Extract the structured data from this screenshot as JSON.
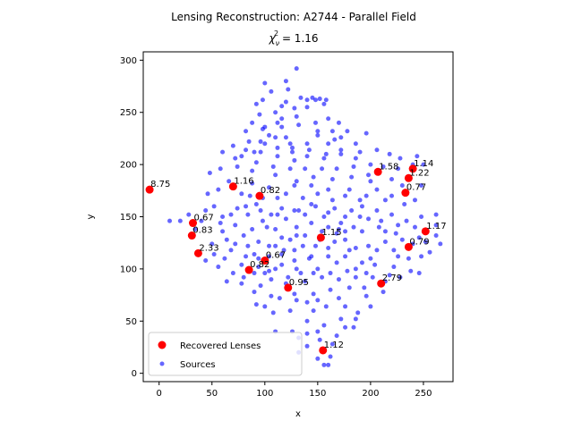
{
  "chart_data": {
    "type": "scatter",
    "title": "Lensing Reconstruction: A2744 - Parallel Field",
    "subtitle_lhs": "χ",
    "subtitle_sub": "ν",
    "subtitle_sup": "2",
    "subtitle_rhs": " = 1.16",
    "xlabel": "x",
    "ylabel": "y",
    "xlim": [
      -15,
      278
    ],
    "ylim": [
      -8,
      308
    ],
    "xticks": [
      0,
      50,
      100,
      150,
      200,
      250
    ],
    "yticks": [
      0,
      50,
      100,
      150,
      200,
      250,
      300
    ],
    "legend": {
      "position": "lower-left",
      "entries": [
        "Recovered Lenses",
        "Sources"
      ]
    },
    "colors": {
      "lenses": "#ff0000",
      "sources": "#0000ff"
    },
    "lenses": [
      {
        "x": -9,
        "y": 176,
        "label": "8.75"
      },
      {
        "x": 70,
        "y": 179,
        "label": "1.16"
      },
      {
        "x": 95,
        "y": 170,
        "label": "0.82"
      },
      {
        "x": 32,
        "y": 144,
        "label": "0.67"
      },
      {
        "x": 31,
        "y": 132,
        "label": "0.83"
      },
      {
        "x": 37,
        "y": 115,
        "label": "2.33"
      },
      {
        "x": 100,
        "y": 108,
        "label": "0.67"
      },
      {
        "x": 85,
        "y": 99,
        "label": "0.82"
      },
      {
        "x": 122,
        "y": 82,
        "label": "0.95"
      },
      {
        "x": 153,
        "y": 130,
        "label": "1.15"
      },
      {
        "x": 155,
        "y": 22,
        "label": "1.12"
      },
      {
        "x": 207,
        "y": 193,
        "label": "1.58"
      },
      {
        "x": 240,
        "y": 196,
        "label": "1.14"
      },
      {
        "x": 236,
        "y": 187,
        "label": "1.22"
      },
      {
        "x": 233,
        "y": 173,
        "label": "0.77"
      },
      {
        "x": 252,
        "y": 136,
        "label": "1.17"
      },
      {
        "x": 236,
        "y": 121,
        "label": "0.79"
      },
      {
        "x": 210,
        "y": 86,
        "label": "2.79"
      }
    ],
    "sources": [
      [
        130,
        292
      ],
      [
        122,
        272
      ],
      [
        100,
        278
      ],
      [
        98,
        262
      ],
      [
        120,
        260
      ],
      [
        145,
        264
      ],
      [
        148,
        262
      ],
      [
        152,
        263
      ],
      [
        156,
        258
      ],
      [
        140,
        255
      ],
      [
        128,
        254
      ],
      [
        110,
        250
      ],
      [
        95,
        248
      ],
      [
        88,
        240
      ],
      [
        112,
        240
      ],
      [
        132,
        238
      ],
      [
        160,
        244
      ],
      [
        170,
        240
      ],
      [
        178,
        232
      ],
      [
        150,
        228
      ],
      [
        120,
        226
      ],
      [
        104,
        228
      ],
      [
        85,
        222
      ],
      [
        70,
        218
      ],
      [
        60,
        212
      ],
      [
        78,
        208
      ],
      [
        96,
        212
      ],
      [
        112,
        208
      ],
      [
        128,
        204
      ],
      [
        140,
        208
      ],
      [
        156,
        206
      ],
      [
        172,
        210
      ],
      [
        190,
        212
      ],
      [
        206,
        214
      ],
      [
        218,
        210
      ],
      [
        228,
        206
      ],
      [
        244,
        208
      ],
      [
        250,
        200
      ],
      [
        236,
        188
      ],
      [
        220,
        186
      ],
      [
        198,
        190
      ],
      [
        182,
        188
      ],
      [
        164,
        186
      ],
      [
        146,
        188
      ],
      [
        130,
        184
      ],
      [
        110,
        190
      ],
      [
        88,
        194
      ],
      [
        74,
        198
      ],
      [
        58,
        196
      ],
      [
        48,
        192
      ],
      [
        46,
        172
      ],
      [
        52,
        160
      ],
      [
        60,
        150
      ],
      [
        74,
        158
      ],
      [
        92,
        162
      ],
      [
        106,
        152
      ],
      [
        120,
        148
      ],
      [
        138,
        152
      ],
      [
        156,
        150
      ],
      [
        172,
        144
      ],
      [
        190,
        150
      ],
      [
        206,
        156
      ],
      [
        220,
        152
      ],
      [
        234,
        146
      ],
      [
        248,
        150
      ],
      [
        262,
        152
      ],
      [
        262,
        142
      ],
      [
        246,
        130
      ],
      [
        230,
        128
      ],
      [
        214,
        126
      ],
      [
        198,
        122
      ],
      [
        180,
        118
      ],
      [
        166,
        126
      ],
      [
        148,
        122
      ],
      [
        128,
        118
      ],
      [
        110,
        122
      ],
      [
        94,
        126
      ],
      [
        80,
        132
      ],
      [
        64,
        128
      ],
      [
        50,
        124
      ],
      [
        44,
        108
      ],
      [
        56,
        102
      ],
      [
        70,
        96
      ],
      [
        82,
        112
      ],
      [
        100,
        96
      ],
      [
        116,
        104
      ],
      [
        134,
        96
      ],
      [
        150,
        100
      ],
      [
        168,
        106
      ],
      [
        186,
        100
      ],
      [
        204,
        104
      ],
      [
        222,
        102
      ],
      [
        236,
        110
      ],
      [
        248,
        112
      ],
      [
        212,
        78
      ],
      [
        196,
        74
      ],
      [
        180,
        82
      ],
      [
        162,
        80
      ],
      [
        146,
        76
      ],
      [
        130,
        70
      ],
      [
        114,
        72
      ],
      [
        96,
        84
      ],
      [
        80,
        92
      ],
      [
        92,
        66
      ],
      [
        108,
        58
      ],
      [
        124,
        60
      ],
      [
        140,
        50
      ],
      [
        156,
        46
      ],
      [
        172,
        52
      ],
      [
        188,
        58
      ],
      [
        200,
        64
      ],
      [
        184,
        44
      ],
      [
        168,
        36
      ],
      [
        152,
        32
      ],
      [
        140,
        26
      ],
      [
        150,
        14
      ],
      [
        162,
        16
      ],
      [
        156,
        8
      ],
      [
        160,
        8
      ],
      [
        140,
        38
      ],
      [
        126,
        40
      ],
      [
        132,
        34
      ],
      [
        110,
        40
      ],
      [
        146,
        60
      ],
      [
        158,
        64
      ],
      [
        170,
        72
      ],
      [
        104,
        112
      ],
      [
        116,
        130
      ],
      [
        130,
        140
      ],
      [
        142,
        110
      ],
      [
        160,
        112
      ],
      [
        176,
        128
      ],
      [
        192,
        136
      ],
      [
        208,
        140
      ],
      [
        224,
        134
      ],
      [
        240,
        124
      ],
      [
        196,
        170
      ],
      [
        180,
        176
      ],
      [
        164,
        166
      ],
      [
        150,
        172
      ],
      [
        136,
        168
      ],
      [
        120,
        172
      ],
      [
        104,
        178
      ],
      [
        88,
        182
      ],
      [
        78,
        172
      ],
      [
        84,
        152
      ],
      [
        72,
        142
      ],
      [
        68,
        118
      ],
      [
        78,
        104
      ],
      [
        94,
        110
      ],
      [
        106,
        90
      ],
      [
        122,
        92
      ],
      [
        138,
        88
      ],
      [
        154,
        92
      ],
      [
        170,
        90
      ],
      [
        186,
        92
      ],
      [
        202,
        92
      ],
      [
        218,
        94
      ],
      [
        200,
        110
      ],
      [
        186,
        120
      ],
      [
        170,
        138
      ],
      [
        154,
        136
      ],
      [
        138,
        132
      ],
      [
        124,
        128
      ],
      [
        110,
        138
      ],
      [
        98,
        146
      ],
      [
        88,
        138
      ],
      [
        84,
        122
      ],
      [
        94,
        102
      ],
      [
        110,
        100
      ],
      [
        128,
        108
      ],
      [
        144,
        112
      ],
      [
        160,
        120
      ],
      [
        176,
        112
      ],
      [
        192,
        106
      ],
      [
        206,
        118
      ],
      [
        222,
        118
      ],
      [
        206,
        176
      ],
      [
        220,
        170
      ],
      [
        232,
        162
      ],
      [
        242,
        166
      ],
      [
        214,
        166
      ],
      [
        226,
        196
      ],
      [
        240,
        200
      ],
      [
        248,
        180
      ],
      [
        230,
        180
      ],
      [
        120,
        280
      ],
      [
        140,
        262
      ],
      [
        158,
        262
      ],
      [
        116,
        236
      ],
      [
        100,
        220
      ],
      [
        126,
        216
      ],
      [
        140,
        220
      ],
      [
        160,
        220
      ],
      [
        172,
        226
      ],
      [
        186,
        220
      ],
      [
        196,
        230
      ],
      [
        164,
        232
      ],
      [
        148,
        240
      ],
      [
        130,
        246
      ],
      [
        116,
        244
      ],
      [
        98,
        234
      ],
      [
        82,
        232
      ],
      [
        92,
        202
      ],
      [
        108,
        198
      ],
      [
        124,
        196
      ],
      [
        138,
        196
      ],
      [
        154,
        196
      ],
      [
        168,
        196
      ],
      [
        184,
        198
      ],
      [
        200,
        200
      ],
      [
        212,
        198
      ],
      [
        66,
        184
      ],
      [
        56,
        176
      ],
      [
        40,
        146
      ],
      [
        34,
        138
      ],
      [
        28,
        152
      ],
      [
        20,
        146
      ],
      [
        10,
        146
      ],
      [
        44,
        156
      ],
      [
        60,
        136
      ],
      [
        62,
        110
      ],
      [
        52,
        114
      ],
      [
        64,
        88
      ],
      [
        78,
        86
      ],
      [
        90,
        78
      ],
      [
        106,
        74
      ],
      [
        100,
        64
      ],
      [
        120,
        86
      ],
      [
        150,
        70
      ],
      [
        176,
        64
      ],
      [
        194,
        82
      ],
      [
        214,
        88
      ],
      [
        228,
        92
      ],
      [
        238,
        98
      ],
      [
        246,
        96
      ],
      [
        256,
        116
      ],
      [
        266,
        124
      ],
      [
        262,
        132
      ],
      [
        252,
        126
      ],
      [
        242,
        140
      ],
      [
        226,
        142
      ],
      [
        210,
        146
      ],
      [
        192,
        160
      ],
      [
        176,
        170
      ],
      [
        160,
        176
      ],
      [
        144,
        180
      ],
      [
        128,
        180
      ],
      [
        112,
        168
      ],
      [
        98,
        168
      ],
      [
        86,
        170
      ],
      [
        102,
        140
      ],
      [
        116,
        158
      ],
      [
        132,
        156
      ],
      [
        148,
        160
      ],
      [
        166,
        158
      ],
      [
        182,
        156
      ],
      [
        198,
        148
      ],
      [
        214,
        136
      ],
      [
        226,
        112
      ],
      [
        196,
        96
      ],
      [
        178,
        98
      ],
      [
        162,
        96
      ],
      [
        146,
        96
      ],
      [
        130,
        100
      ],
      [
        116,
        114
      ],
      [
        104,
        122
      ],
      [
        90,
        114
      ],
      [
        72,
        124
      ],
      [
        58,
        144
      ],
      [
        68,
        152
      ],
      [
        82,
        160
      ],
      [
        96,
        156
      ],
      [
        112,
        152
      ],
      [
        128,
        156
      ],
      [
        144,
        162
      ],
      [
        160,
        154
      ],
      [
        176,
        150
      ],
      [
        190,
        166
      ],
      [
        200,
        184
      ],
      [
        186,
        206
      ],
      [
        172,
        214
      ],
      [
        158,
        210
      ],
      [
        142,
        214
      ],
      [
        126,
        212
      ],
      [
        112,
        216
      ],
      [
        96,
        222
      ],
      [
        82,
        214
      ],
      [
        72,
        206
      ],
      [
        106,
        270
      ],
      [
        92,
        258
      ],
      [
        116,
        256
      ],
      [
        134,
        264
      ],
      [
        150,
        232
      ],
      [
        166,
        224
      ],
      [
        124,
        220
      ],
      [
        110,
        226
      ],
      [
        100,
        236
      ],
      [
        90,
        212
      ],
      [
        150,
        40
      ],
      [
        132,
        20
      ],
      [
        164,
        28
      ],
      [
        176,
        44
      ],
      [
        186,
        52
      ],
      [
        140,
        68
      ],
      [
        128,
        76
      ],
      [
        104,
        98
      ],
      [
        90,
        96
      ],
      [
        118,
        118
      ],
      [
        136,
        122
      ],
      [
        152,
        128
      ],
      [
        168,
        134
      ],
      [
        184,
        140
      ],
      [
        130,
        132
      ],
      [
        144,
        144
      ],
      [
        160,
        140
      ],
      [
        176,
        136
      ]
    ]
  }
}
